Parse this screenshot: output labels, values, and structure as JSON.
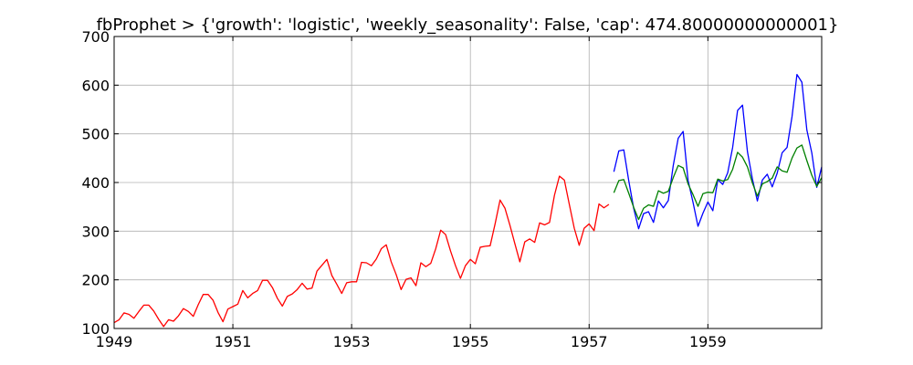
{
  "chart_data": {
    "type": "line",
    "title": "fbProphet > {'growth': 'logistic', 'weekly_seasonality': False, 'cap': 474.80000000000001}",
    "xlabel": "",
    "ylabel": "",
    "xlim": [
      1949,
      1960.917
    ],
    "ylim": [
      100,
      700
    ],
    "x_ticks": [
      1949,
      1951,
      1953,
      1955,
      1957,
      1959
    ],
    "x_tick_labels": [
      "1949",
      "1951",
      "1953",
      "1955",
      "1957",
      "1959"
    ],
    "y_ticks": [
      100,
      200,
      300,
      400,
      500,
      600,
      700
    ],
    "y_tick_labels": [
      "100",
      "200",
      "300",
      "400",
      "500",
      "600",
      "700"
    ],
    "grid": true,
    "legend": "none",
    "series": [
      {
        "color": "#ff0000",
        "x_start": 1949,
        "x_step": 0.08333,
        "values": [
          112,
          118,
          132,
          129,
          121,
          135,
          148,
          148,
          136,
          119,
          104,
          118,
          115,
          126,
          141,
          135,
          125,
          149,
          170,
          170,
          158,
          133,
          114,
          140,
          145,
          150,
          178,
          163,
          172,
          178,
          199,
          199,
          184,
          162,
          146,
          166,
          171,
          180,
          193,
          181,
          183,
          218,
          230,
          242,
          209,
          191,
          172,
          194,
          196,
          196,
          236,
          235,
          229,
          243,
          264,
          272,
          237,
          211,
          180,
          201,
          204,
          188,
          235,
          227,
          234,
          264,
          302,
          293,
          259,
          229,
          203,
          229,
          242,
          233,
          267,
          269,
          270,
          315,
          364,
          347,
          312,
          274,
          237,
          278,
          284,
          277,
          317,
          313,
          318,
          374,
          413,
          405,
          355,
          306,
          271,
          306,
          315,
          301,
          356,
          348,
          355
        ]
      },
      {
        "color": "#0000ff",
        "x_start": 1957.417,
        "x_step": 0.08333,
        "values": [
          422,
          465,
          467,
          404,
          347,
          305,
          336,
          340,
          318,
          362,
          348,
          363,
          435,
          491,
          505,
          404,
          359,
          310,
          337,
          360,
          342,
          406,
          396,
          420,
          472,
          548,
          559,
          463,
          407,
          362,
          405,
          417,
          391,
          419,
          461,
          472,
          535,
          622,
          606,
          508,
          461,
          390,
          432
        ]
      },
      {
        "color": "#008000",
        "x_start": 1957.417,
        "x_step": 0.08333,
        "values": [
          379,
          404,
          406,
          378,
          349,
          324,
          347,
          354,
          351,
          383,
          378,
          382,
          410,
          435,
          430,
          397,
          375,
          351,
          377,
          380,
          379,
          407,
          403,
          406,
          427,
          462,
          452,
          432,
          399,
          372,
          397,
          402,
          409,
          432,
          424,
          421,
          450,
          471,
          477,
          445,
          415,
          392,
          410
        ]
      }
    ]
  }
}
